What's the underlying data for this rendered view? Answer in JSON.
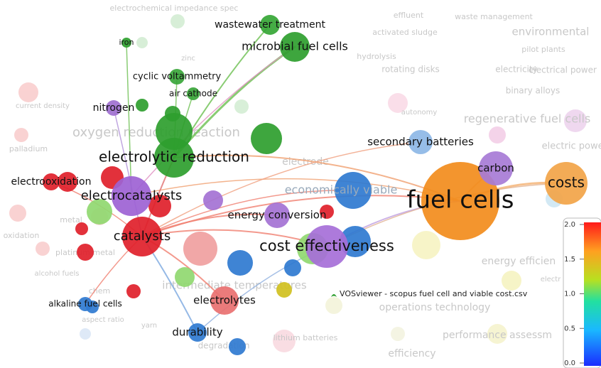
{
  "nodes": [
    {
      "label": "fuel cells",
      "color": "#f28c1c"
    },
    {
      "label": "costs",
      "color": "#f2a448"
    },
    {
      "label": "carbon",
      "color": "#a77bd6"
    },
    {
      "label": "secondary batteries",
      "color": "#8db7e6"
    },
    {
      "label": "cost effectiveness",
      "color": "#a66fd8"
    },
    {
      "label": "energy conversion",
      "color": "#a472d4"
    },
    {
      "label": "electrolytic reduction",
      "color": "#2e9e2e"
    },
    {
      "label": "microbial fuel cells",
      "color": "#2e9e2e"
    },
    {
      "label": "wastewater treatment",
      "color": "#35a635"
    },
    {
      "label": "cyclic voltammetry",
      "color": "#3aa63a"
    },
    {
      "label": "air cathode",
      "color": "#3aa63a"
    },
    {
      "label": "iron",
      "color": "#2e9e2e"
    },
    {
      "label": "nitrogen",
      "color": "#a070d0"
    },
    {
      "label": "electrocatalysts",
      "color": "#9d62d4"
    },
    {
      "label": "catalysts",
      "color": "#e0202a"
    },
    {
      "label": "electrolytes",
      "color": "#e97070"
    },
    {
      "label": "durability",
      "color": "#2f7ad0"
    },
    {
      "label": "alkaline fuel cells",
      "color": "#2f7ad0"
    },
    {
      "label": "electrooxidation",
      "color": "#e0202a"
    },
    {
      "label": "economically viable",
      "color": "#2f7ad0"
    }
  ],
  "background_labels": [
    "electrochemical impedance spec",
    "effluent",
    "waste management",
    "activated sludge",
    "environmental",
    "hydrolysis",
    "pilot plants",
    "zinc",
    "rotating disks",
    "electricity",
    "electrical power",
    "binary alloys",
    "current density",
    "autonomy",
    "regenerative fuel cells",
    "oxygen reduction reaction",
    "palladium",
    "electrode",
    "electric power g",
    "metal",
    "oxidation",
    "platinum metal",
    "alcohol fuels",
    "intermediate temperatures",
    "chem",
    "operations technology",
    "aspect ratio",
    "yarn",
    "energy efficien",
    "electr",
    "performance assessm",
    "degradation",
    "lithium batteries",
    "efficiency"
  ],
  "watermark": "VOSviewer - scopus fuel cell and viable cost.csv",
  "color_bar": {
    "ticks": [
      {
        "value": 2,
        "label": "2.0"
      },
      {
        "value": 1.5,
        "label": "1.5"
      },
      {
        "value": 1,
        "label": "1.0"
      },
      {
        "value": 0.5,
        "label": "0.5"
      },
      {
        "value": 0,
        "label": "0.0"
      }
    ]
  }
}
